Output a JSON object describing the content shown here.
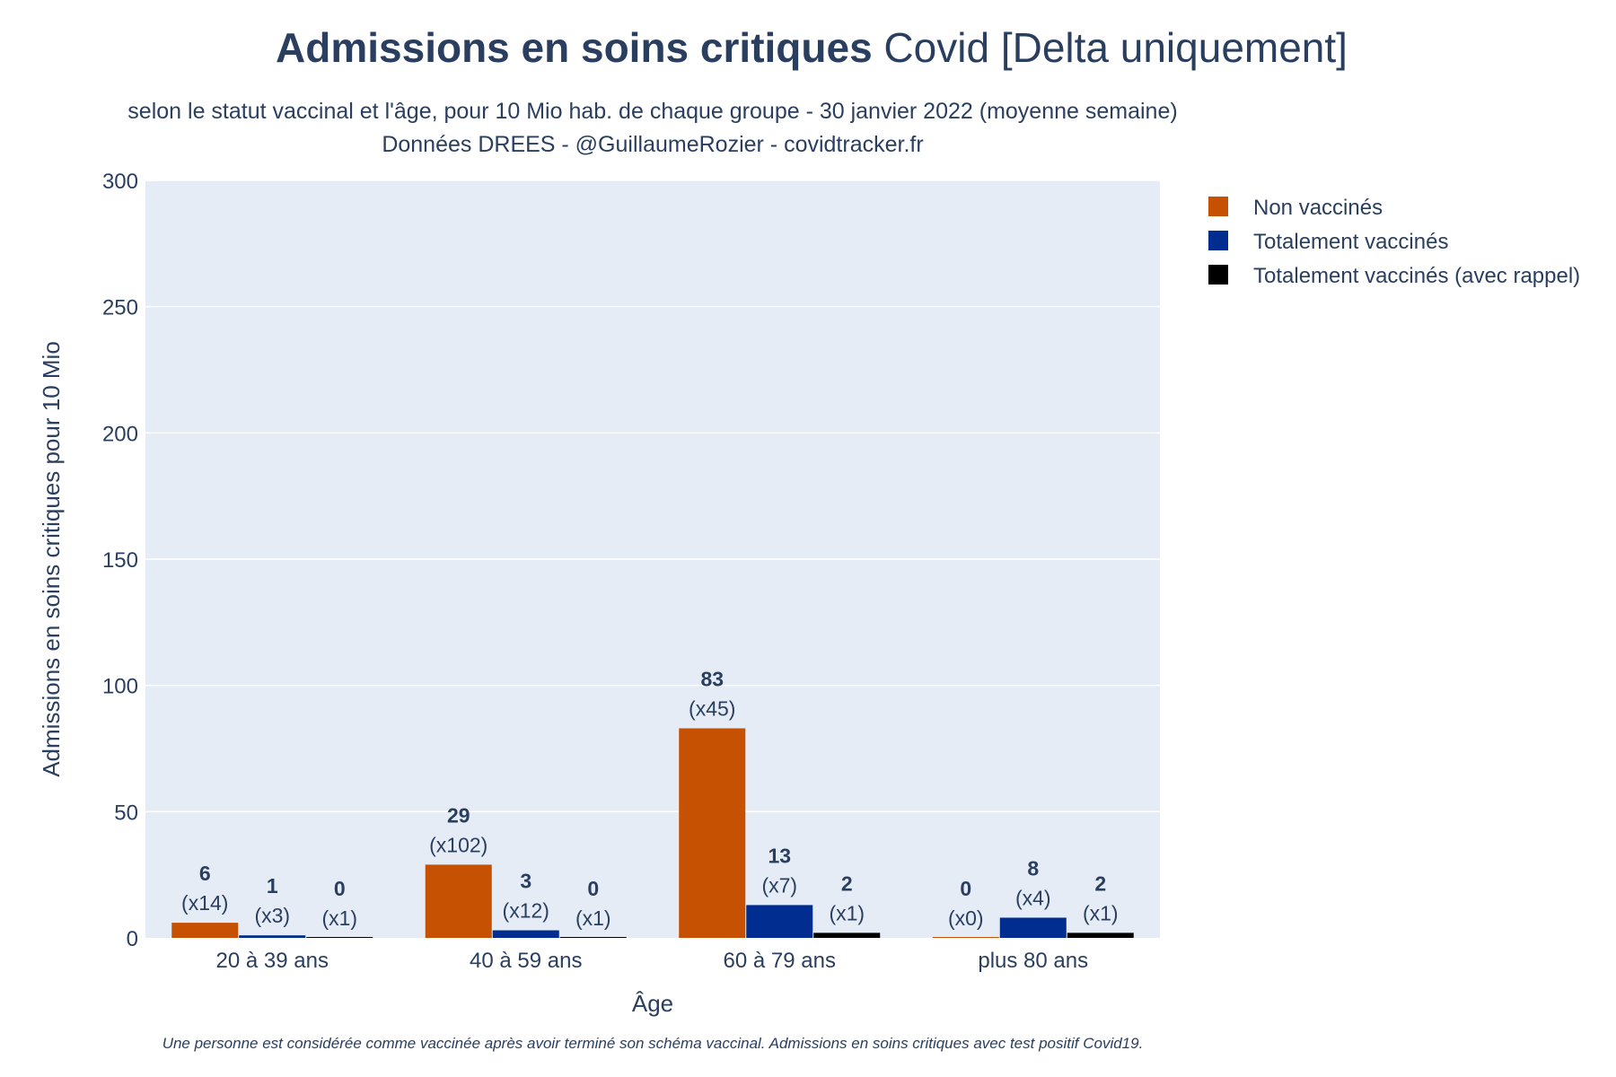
{
  "chart_data": {
    "type": "bar",
    "title_bold": "Admissions en soins critiques",
    "title_rest": " Covid [Delta uniquement]",
    "subtitle_line1": "selon le statut vaccinal et l'âge, pour 10 Mio hab. de chaque groupe - 30 janvier 2022 (moyenne semaine)",
    "subtitle_line2": "Données DREES - @GuillaumeRozier - covidtracker.fr",
    "xlabel": "Âge",
    "ylabel": "Admissions en soins critiques pour 10 Mio",
    "ylim": [
      0,
      300
    ],
    "yticks": [
      0,
      50,
      100,
      150,
      200,
      250,
      300
    ],
    "grid": true,
    "legend_position": "top-right",
    "categories": [
      "20 à 39 ans",
      "40 à 59 ans",
      "60 à 79 ans",
      "plus 80 ans"
    ],
    "series": [
      {
        "name": "Non vaccinés",
        "color": "#c65102",
        "values": [
          6,
          29,
          83,
          0
        ],
        "ratio_labels": [
          "(x14)",
          "(x102)",
          "(x45)",
          "(x0)"
        ]
      },
      {
        "name": "Totalement vaccinés",
        "color": "#002d8f",
        "values": [
          1,
          3,
          13,
          8
        ],
        "ratio_labels": [
          "(x3)",
          "(x12)",
          "(x7)",
          "(x4)"
        ]
      },
      {
        "name": "Totalement vaccinés (avec rappel)",
        "color": "#000000",
        "values": [
          0,
          0,
          2,
          2
        ],
        "ratio_labels": [
          "(x1)",
          "(x1)",
          "(x1)",
          "(x1)"
        ]
      }
    ],
    "footnote": "Une personne est considérée comme vaccinée après avoir terminé son schéma vaccinal. Admissions en soins critiques avec test positif Covid19."
  },
  "colors": {
    "plot_background": "#e5ecf6",
    "text": "#2a3f5f",
    "grid": "#ffffff"
  }
}
